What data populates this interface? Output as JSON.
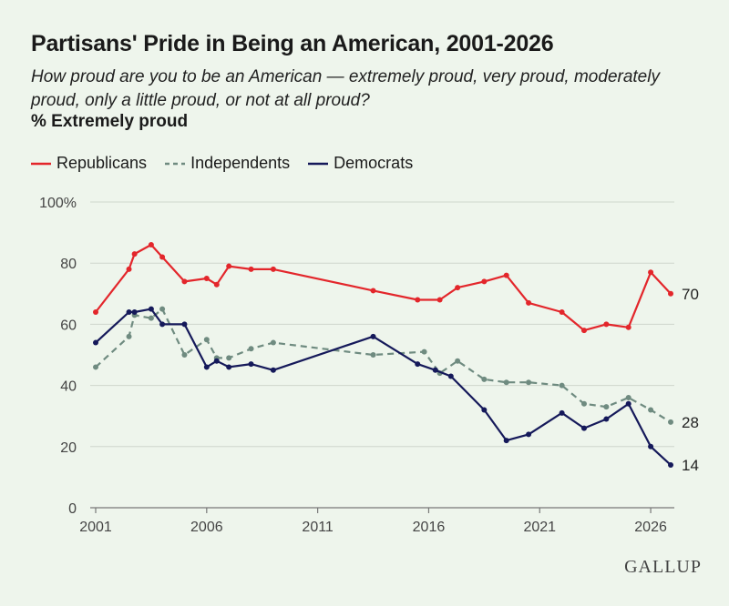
{
  "title": "Partisans' Pride in Being an American, 2001-2026",
  "subtitle": "How proud are you to be an American — extremely proud, very proud, moderately proud, only a little proud, or not at all proud?",
  "measure": "% Extremely proud",
  "brand": "GALLUP",
  "colors": {
    "republicans": "#e3262b",
    "independents": "#6f8b80",
    "democrats": "#15195a",
    "grid": "#cfd6cd",
    "axis": "#777777",
    "text": "#444444"
  },
  "chart_data": {
    "type": "line",
    "title": "Partisans' Pride in Being an American, 2001-2026",
    "xlim": [
      2001,
      2026.9
    ],
    "ylim": [
      0,
      100
    ],
    "x_ticks": [
      2001,
      2006,
      2011,
      2016,
      2021,
      2026
    ],
    "x_tick_labels": [
      "2001",
      "2006",
      "2011",
      "2016",
      "2021",
      "2026"
    ],
    "y_ticks": [
      0,
      20,
      40,
      60,
      80,
      100
    ],
    "y_tick_labels": [
      "0",
      "20",
      "40",
      "60",
      "80",
      "100%"
    ],
    "grid": true,
    "legend_position": "top-left",
    "series": [
      {
        "name": "Republicans",
        "style": "solid",
        "color": "#e3262b",
        "end_label": "70",
        "points": [
          [
            2001.0,
            64
          ],
          [
            2002.5,
            78
          ],
          [
            2002.75,
            83
          ],
          [
            2003.5,
            86
          ],
          [
            2004.0,
            82
          ],
          [
            2005.0,
            74
          ],
          [
            2006.0,
            75
          ],
          [
            2006.45,
            73
          ],
          [
            2007.0,
            79
          ],
          [
            2008.0,
            78
          ],
          [
            2009.0,
            78
          ],
          [
            2013.5,
            71
          ],
          [
            2015.5,
            68
          ],
          [
            2016.5,
            68
          ],
          [
            2017.3,
            72
          ],
          [
            2018.5,
            74
          ],
          [
            2019.5,
            76
          ],
          [
            2020.5,
            67
          ],
          [
            2022.0,
            64
          ],
          [
            2023.0,
            58
          ],
          [
            2024.0,
            60
          ],
          [
            2025.0,
            59
          ],
          [
            2026.0,
            77
          ],
          [
            2026.9,
            70
          ]
        ]
      },
      {
        "name": "Independents",
        "style": "dashed",
        "color": "#6f8b80",
        "end_label": "28",
        "points": [
          [
            2001.0,
            46
          ],
          [
            2002.5,
            56
          ],
          [
            2002.75,
            63
          ],
          [
            2003.5,
            62
          ],
          [
            2004.0,
            65
          ],
          [
            2005.0,
            50
          ],
          [
            2006.0,
            55
          ],
          [
            2006.45,
            49
          ],
          [
            2007.0,
            49
          ],
          [
            2008.0,
            52
          ],
          [
            2009.0,
            54
          ],
          [
            2013.5,
            50
          ],
          [
            2015.8,
            51
          ],
          [
            2016.5,
            44
          ],
          [
            2017.3,
            48
          ],
          [
            2018.5,
            42
          ],
          [
            2019.5,
            41
          ],
          [
            2020.5,
            41
          ],
          [
            2022.0,
            40
          ],
          [
            2023.0,
            34
          ],
          [
            2024.0,
            33
          ],
          [
            2025.0,
            36
          ],
          [
            2026.0,
            32
          ],
          [
            2026.9,
            28
          ]
        ]
      },
      {
        "name": "Democrats",
        "style": "solid",
        "color": "#15195a",
        "end_label": "14",
        "points": [
          [
            2001.0,
            54
          ],
          [
            2002.5,
            64
          ],
          [
            2002.75,
            64
          ],
          [
            2003.5,
            65
          ],
          [
            2004.0,
            60
          ],
          [
            2005.0,
            60
          ],
          [
            2006.0,
            46
          ],
          [
            2006.45,
            48
          ],
          [
            2007.0,
            46
          ],
          [
            2008.0,
            47
          ],
          [
            2009.0,
            45
          ],
          [
            2015.5,
            47
          ],
          [
            2016.3,
            45
          ],
          [
            2013.5,
            56
          ],
          [
            2017.0,
            43
          ],
          [
            2018.5,
            32
          ],
          [
            2019.5,
            22
          ],
          [
            2020.5,
            24
          ],
          [
            2022.0,
            31
          ],
          [
            2023.0,
            26
          ],
          [
            2024.0,
            29
          ],
          [
            2025.0,
            34
          ],
          [
            2026.0,
            20
          ],
          [
            2026.9,
            14
          ]
        ]
      }
    ]
  }
}
